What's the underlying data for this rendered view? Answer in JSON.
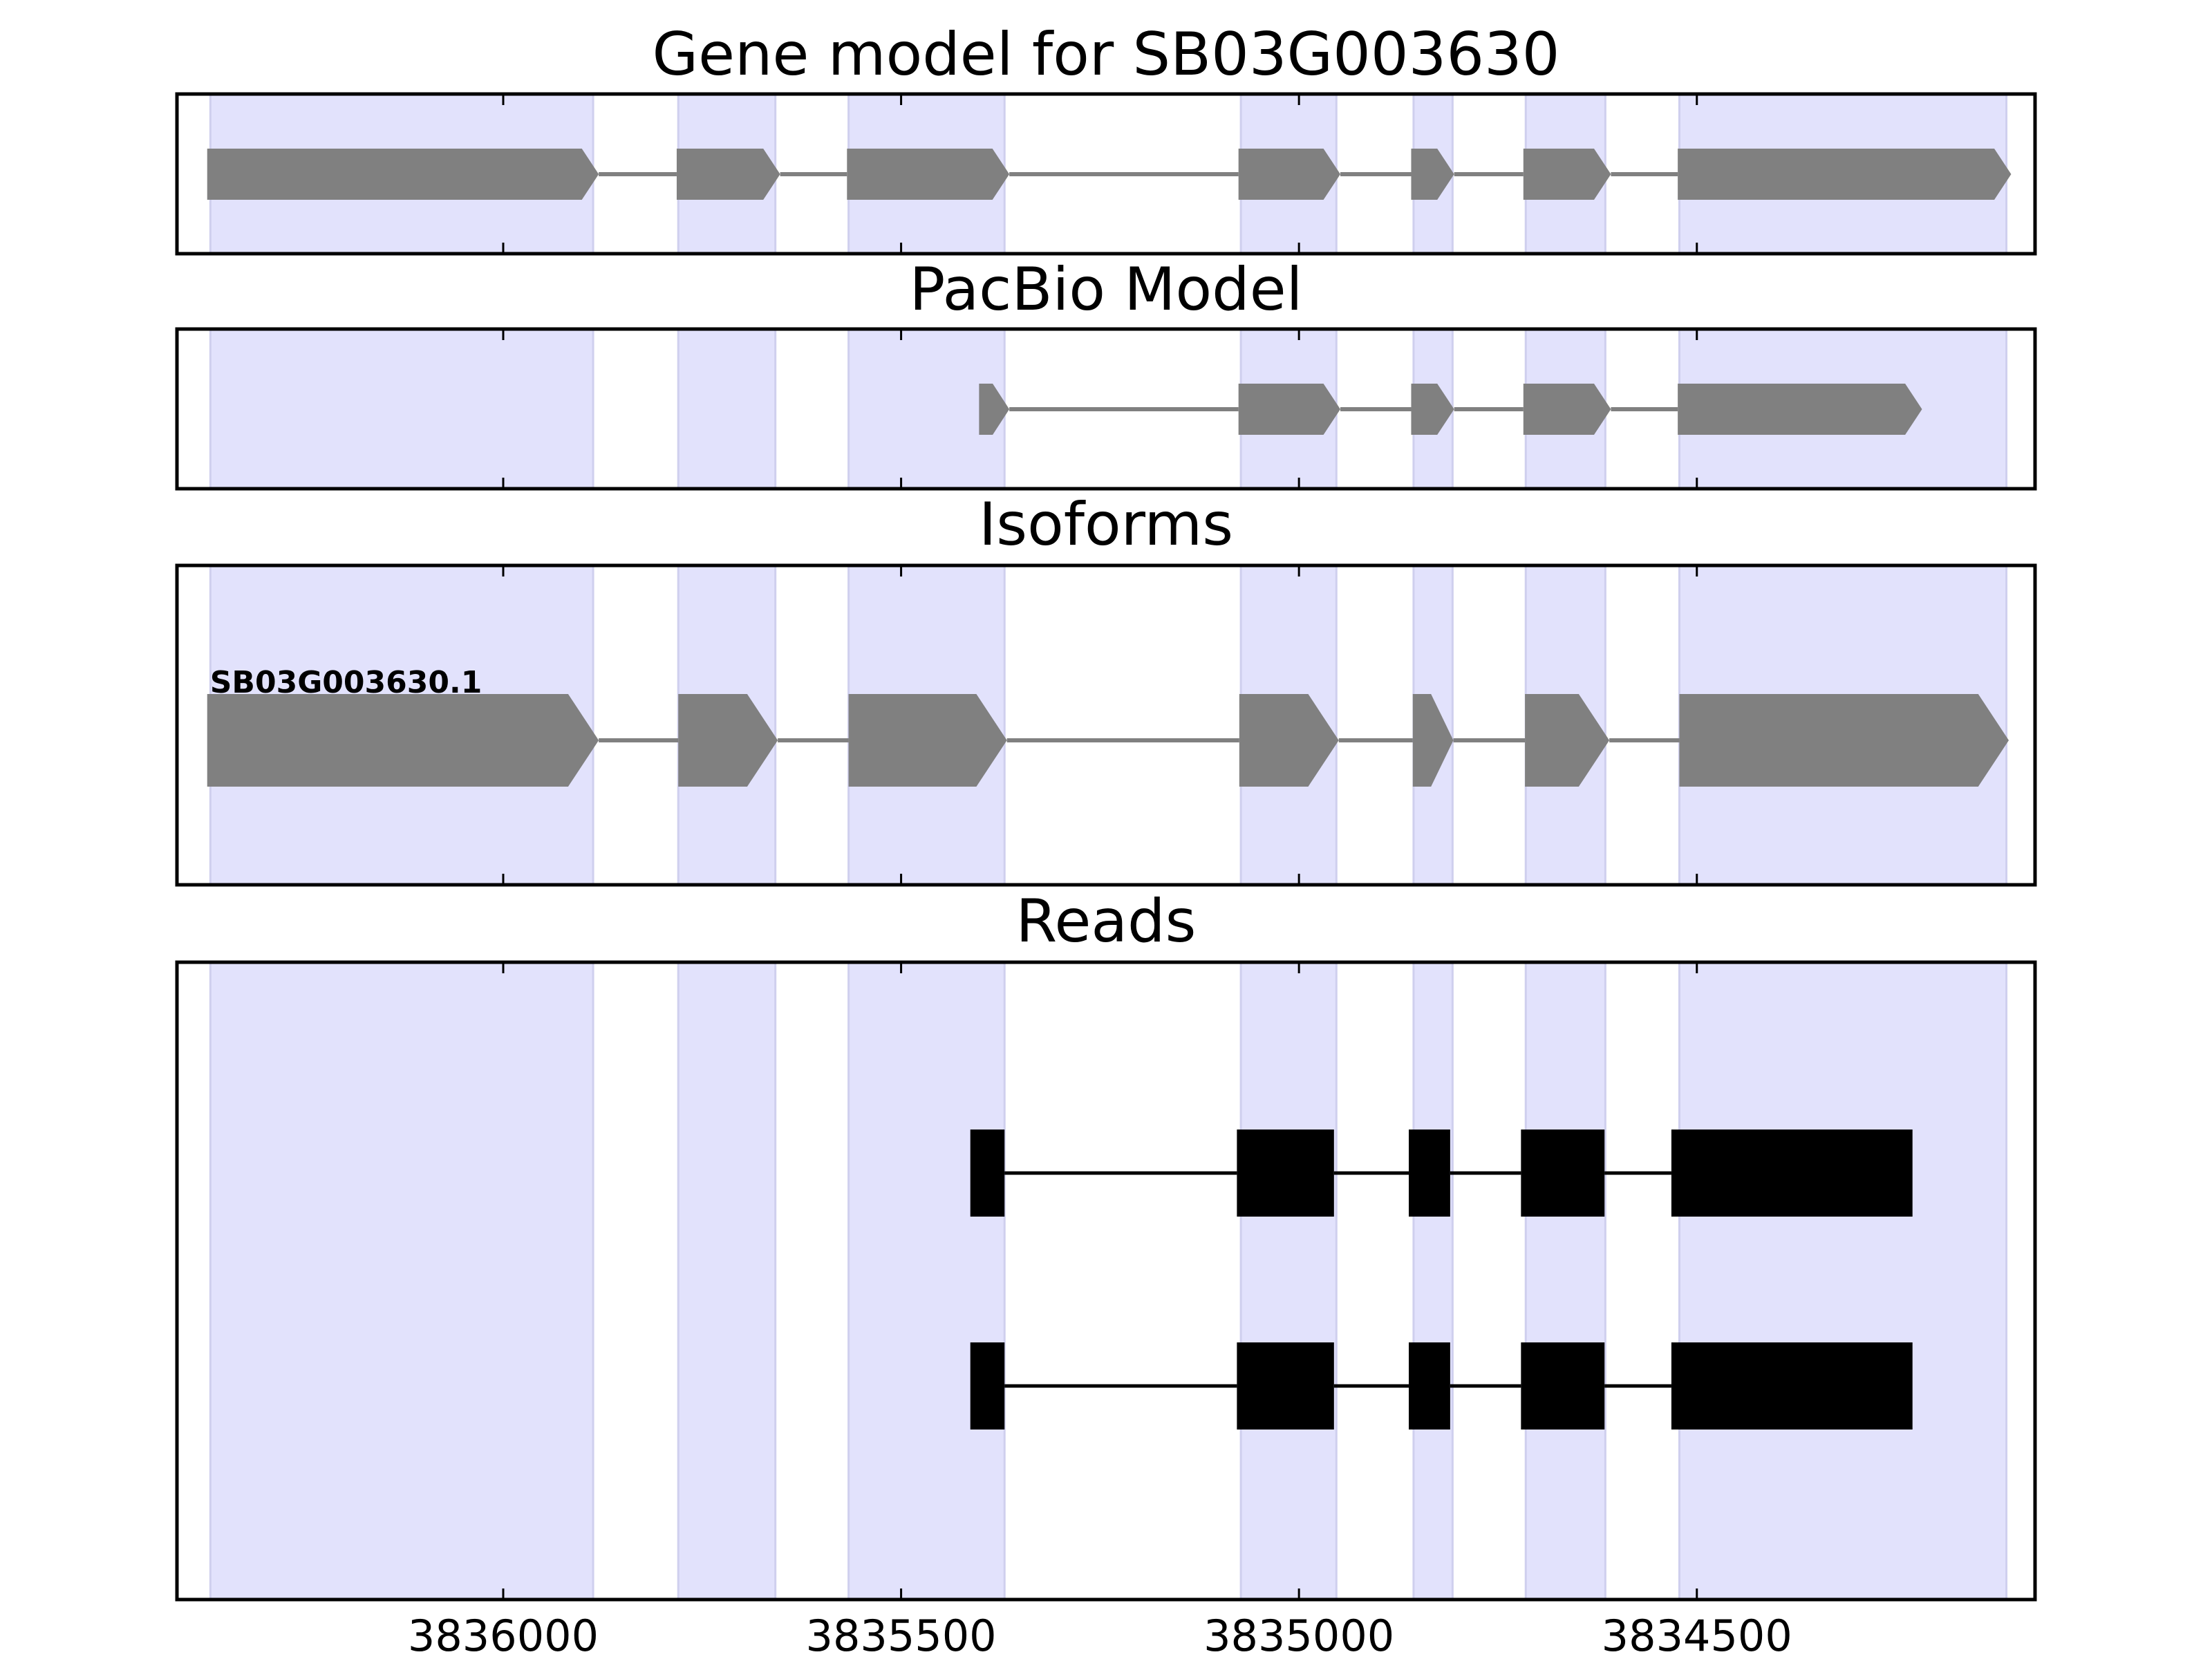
{
  "colors": {
    "exon_band": "#e2e2fc",
    "exon_band_edge": "#cfcfee",
    "model_feature": "#808080",
    "read_feature": "#000000",
    "axes": "#000000"
  },
  "chart_data": [
    {
      "type": "gene-track",
      "title": "Gene model for SB03G003630",
      "orientation": "reversed-x",
      "xlim": [
        3836410,
        3834075
      ],
      "exon_regions": [
        [
          3836368,
          3835887
        ],
        [
          3835780,
          3835658
        ],
        [
          3835566,
          3835370
        ],
        [
          3835073,
          3834953
        ],
        [
          3834856,
          3834807
        ],
        [
          3834715,
          3834615
        ],
        [
          3834522,
          3834111
        ]
      ],
      "features": [
        {
          "exons": [
            [
              3836372,
              3835880
            ],
            [
              3835782,
              3835652
            ],
            [
              3835568,
              3835364
            ],
            [
              3835076,
              3834948
            ],
            [
              3834859,
              3834805
            ],
            [
              3834718,
              3834608
            ],
            [
              3834524,
              3834105
            ]
          ]
        }
      ]
    },
    {
      "type": "gene-track",
      "title": "PacBio Model",
      "orientation": "reversed-x",
      "xlim": [
        3836410,
        3834075
      ],
      "exon_regions": [
        [
          3836368,
          3835887
        ],
        [
          3835780,
          3835658
        ],
        [
          3835566,
          3835370
        ],
        [
          3835073,
          3834953
        ],
        [
          3834856,
          3834807
        ],
        [
          3834715,
          3834615
        ],
        [
          3834522,
          3834111
        ]
      ],
      "features": [
        {
          "exons": [
            [
              3835402,
              3835364
            ],
            [
              3835076,
              3834948
            ],
            [
              3834859,
              3834805
            ],
            [
              3834718,
              3834608
            ],
            [
              3834524,
              3834217
            ]
          ]
        }
      ]
    },
    {
      "type": "gene-track",
      "title": "Isoforms",
      "orientation": "reversed-x",
      "xlim": [
        3836410,
        3834075
      ],
      "exon_regions": [
        [
          3836368,
          3835887
        ],
        [
          3835780,
          3835658
        ],
        [
          3835566,
          3835370
        ],
        [
          3835073,
          3834953
        ],
        [
          3834856,
          3834807
        ],
        [
          3834715,
          3834615
        ],
        [
          3834522,
          3834111
        ]
      ],
      "features": [
        {
          "label": "SB03G003630.1",
          "exons": [
            [
              3836372,
              3835880
            ],
            [
              3835780,
              3835655
            ],
            [
              3835566,
              3835367
            ],
            [
              3835075,
              3834950
            ],
            [
              3834857,
              3834806
            ],
            [
              3834716,
              3834610
            ],
            [
              3834522,
              3834108
            ]
          ]
        }
      ]
    },
    {
      "type": "gene-track",
      "title": "Reads",
      "orientation": "reversed-x",
      "xlim": [
        3836410,
        3834075
      ],
      "xticks": [
        3836000,
        3835500,
        3835000,
        3834500
      ],
      "xtick_labels": [
        "3836000",
        "3835500",
        "3835000",
        "3834500"
      ],
      "exon_regions": [
        [
          3836368,
          3835887
        ],
        [
          3835780,
          3835658
        ],
        [
          3835566,
          3835370
        ],
        [
          3835073,
          3834953
        ],
        [
          3834856,
          3834807
        ],
        [
          3834715,
          3834615
        ],
        [
          3834522,
          3834111
        ]
      ],
      "features": [
        {
          "exons": [
            [
              3835413,
              3835370
            ],
            [
              3835078,
              3834956
            ],
            [
              3834862,
              3834810
            ],
            [
              3834721,
              3834616
            ],
            [
              3834532,
              3834229
            ]
          ]
        },
        {
          "exons": [
            [
              3835413,
              3835370
            ],
            [
              3835078,
              3834956
            ],
            [
              3834862,
              3834810
            ],
            [
              3834721,
              3834616
            ],
            [
              3834532,
              3834229
            ]
          ]
        }
      ]
    }
  ]
}
